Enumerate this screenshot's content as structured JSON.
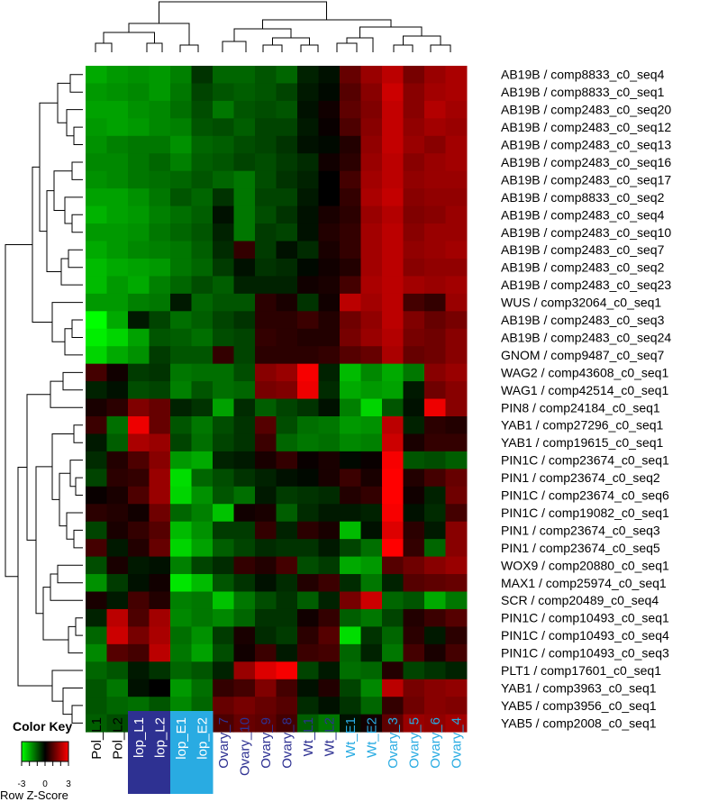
{
  "chart_data": {
    "type": "heatmap",
    "title": "",
    "xlabel": "",
    "ylabel": "",
    "value_range": [
      -3,
      3
    ],
    "colors": {
      "low": "#00ff00",
      "mid": "#000000",
      "high": "#ff0000"
    },
    "columns": [
      {
        "label": "Pol_L1",
        "color": "#000000",
        "box": ""
      },
      {
        "label": "Pol_L2",
        "color": "#000000",
        "box": ""
      },
      {
        "label": "lop_L1",
        "color": "#ffffff",
        "box": "#2e3192"
      },
      {
        "label": "lop_L2",
        "color": "#ffffff",
        "box": "#2e3192"
      },
      {
        "label": "lop_E1",
        "color": "#ffffff",
        "box": "#29abe2"
      },
      {
        "label": "lop_E2",
        "color": "#ffffff",
        "box": "#29abe2"
      },
      {
        "label": "Ovary_7",
        "color": "#2e3192",
        "box": ""
      },
      {
        "label": "Ovary_10",
        "color": "#2e3192",
        "box": ""
      },
      {
        "label": "Ovary_9",
        "color": "#2e3192",
        "box": ""
      },
      {
        "label": "Ovary_8",
        "color": "#2e3192",
        "box": ""
      },
      {
        "label": "Wt_L1",
        "color": "#2e3192",
        "box": ""
      },
      {
        "label": "Wt_L2",
        "color": "#2e3192",
        "box": ""
      },
      {
        "label": "Wt_E1",
        "color": "#29abe2",
        "box": ""
      },
      {
        "label": "Wt_E2",
        "color": "#29abe2",
        "box": ""
      },
      {
        "label": "Ovary_3",
        "color": "#29abe2",
        "box": ""
      },
      {
        "label": "Ovary_5",
        "color": "#29abe2",
        "box": ""
      },
      {
        "label": "Ovary_6",
        "color": "#29abe2",
        "box": ""
      },
      {
        "label": "Ovary_4",
        "color": "#29abe2",
        "box": ""
      }
    ],
    "rows": [
      "AB19B / comp8833_c0_seq4",
      "AB19B / comp8833_c0_seq1",
      "AB19B / comp2483_c0_seq20",
      "AB19B / comp2483_c0_seq12",
      "AB19B / comp2483_c0_seq13",
      "AB19B / comp2483_c0_seq16",
      "AB19B / comp2483_c0_seq17",
      "AB19B / comp8833_c0_seq2",
      "AB19B / comp2483_c0_seq4",
      "AB19B / comp2483_c0_seq10",
      "AB19B / comp2483_c0_seq7",
      "AB19B / comp2483_c0_seq2",
      "AB19B / comp2483_c0_seq23",
      "WUS / comp32064_c0_seq1",
      "AB19B / comp2483_c0_seq3",
      "AB19B / comp2483_c0_seq24",
      "GNOM / comp9487_c0_seq7",
      "WAG2 / comp43608_c0_seq1",
      "WAG1 / comp42514_c0_seq1",
      "PIN8 / comp24184_c0_seq1",
      "YAB1 / comp27296_c0_seq1",
      "YAB1 / comp19615_c0_seq1",
      "PIN1C / comp23674_c0_seq1",
      "PIN1 / comp23674_c0_seq2",
      "PIN1C / comp23674_c0_seq6",
      "PIN1C / comp19082_c0_seq1",
      "PIN1 / comp23674_c0_seq3",
      "PIN1 / comp23674_c0_seq5",
      "WOX9 / comp20880_c0_seq1",
      "MAX1 / comp25974_c0_seq1",
      "SCR / comp20489_c0_seq4",
      "PIN1C / comp10493_c0_seq1",
      "PIN1C / comp10493_c0_seq4",
      "PIN1C / comp10493_c0_seq3",
      "PLT1 / comp17601_c0_seq1",
      "YAB1 / comp3963_c0_seq1",
      "YAB5 / comp3956_c0_seq1",
      "YAB5 / comp2008_c0_seq1"
    ],
    "values": [
      [
        -2.0,
        -1.8,
        -1.7,
        -1.8,
        -1.5,
        -0.6,
        -1.2,
        -1.2,
        -1.0,
        -1.2,
        -0.4,
        -0.2,
        1.2,
        1.8,
        2.2,
        1.4,
        1.8,
        2.0
      ],
      [
        -1.8,
        -1.7,
        -1.6,
        -1.8,
        -1.4,
        -0.8,
        -1.0,
        -1.1,
        -1.0,
        -0.8,
        -0.3,
        -0.1,
        1.0,
        1.6,
        2.4,
        1.6,
        1.9,
        2.0
      ],
      [
        -1.9,
        -1.9,
        -1.7,
        -1.6,
        -1.3,
        -0.9,
        -1.4,
        -1.0,
        -0.9,
        -1.0,
        -0.2,
        0.2,
        1.1,
        1.5,
        2.3,
        1.6,
        2.1,
        1.9
      ],
      [
        -1.8,
        -1.9,
        -1.8,
        -1.6,
        -1.5,
        -1.0,
        -0.9,
        -1.1,
        -0.8,
        -0.8,
        -0.3,
        0.1,
        0.9,
        1.6,
        2.3,
        1.7,
        1.9,
        1.8
      ],
      [
        -1.7,
        -1.5,
        -1.4,
        -1.4,
        -1.7,
        -1.2,
        -1.1,
        -0.9,
        -0.8,
        -0.6,
        -0.2,
        -0.1,
        0.4,
        1.7,
        2.3,
        1.8,
        1.6,
        1.9
      ],
      [
        -1.6,
        -1.6,
        -1.4,
        -1.2,
        -1.5,
        -1.1,
        -1.0,
        -0.8,
        -0.9,
        -0.7,
        -0.5,
        0.2,
        0.5,
        1.8,
        2.2,
        1.6,
        1.8,
        1.9
      ],
      [
        -1.7,
        -1.6,
        -1.4,
        -1.3,
        -1.2,
        -1.0,
        -1.2,
        -1.4,
        -0.9,
        -0.6,
        -0.4,
        0.0,
        0.8,
        1.9,
        2.2,
        1.7,
        1.8,
        1.8
      ],
      [
        -1.9,
        -1.9,
        -1.7,
        -1.4,
        -1.0,
        -1.2,
        -0.6,
        -1.4,
        -0.8,
        -0.8,
        -0.3,
        0.0,
        0.6,
        2.0,
        2.3,
        1.6,
        1.7,
        1.7
      ],
      [
        -2.1,
        -1.9,
        -1.8,
        -1.5,
        -1.3,
        -1.1,
        -0.2,
        -1.4,
        -0.9,
        -0.6,
        -0.2,
        0.3,
        0.5,
        1.8,
        2.1,
        1.5,
        1.6,
        1.8
      ],
      [
        -1.8,
        -1.8,
        -1.7,
        -1.4,
        -1.2,
        -1.0,
        -0.4,
        -1.4,
        -0.7,
        -0.8,
        -0.2,
        0.4,
        0.6,
        1.9,
        2.2,
        1.6,
        1.8,
        1.8
      ],
      [
        -2.0,
        -1.8,
        -1.6,
        -1.5,
        -1.4,
        -1.1,
        -0.5,
        0.6,
        -0.7,
        -0.2,
        -0.5,
        0.3,
        0.6,
        1.9,
        2.2,
        1.7,
        1.8,
        1.9
      ],
      [
        -2.2,
        -2.0,
        -1.9,
        -1.8,
        -1.4,
        -1.2,
        -0.7,
        -0.2,
        -0.6,
        -0.5,
        -0.1,
        0.2,
        0.4,
        1.9,
        2.2,
        1.6,
        1.7,
        1.7
      ],
      [
        -2.2,
        -1.8,
        -2.0,
        -1.5,
        -1.2,
        -0.9,
        -1.1,
        -0.4,
        -0.4,
        -0.4,
        0.2,
        0.3,
        0.8,
        2.0,
        2.2,
        1.9,
        1.8,
        1.9
      ],
      [
        -1.8,
        -1.8,
        -1.5,
        -1.4,
        -0.3,
        -1.2,
        -1.0,
        -1.0,
        0.5,
        0.3,
        -0.6,
        0.2,
        2.2,
        1.9,
        2.2,
        0.8,
        0.6,
        1.8
      ],
      [
        -3.0,
        -2.0,
        -0.3,
        -0.8,
        -1.3,
        -1.1,
        -0.8,
        -0.6,
        0.5,
        0.5,
        0.7,
        0.4,
        1.3,
        1.7,
        2.2,
        1.5,
        1.2,
        1.4
      ],
      [
        -2.8,
        -2.5,
        -1.9,
        -1.0,
        -1.1,
        -1.3,
        -0.9,
        -0.8,
        0.6,
        0.5,
        0.4,
        0.4,
        1.4,
        1.8,
        2.1,
        1.4,
        1.3,
        1.6
      ],
      [
        -2.5,
        -2.0,
        -1.7,
        -0.7,
        -1.0,
        -1.0,
        0.6,
        -0.8,
        0.5,
        0.5,
        0.5,
        0.6,
        1.0,
        1.2,
        2.0,
        1.2,
        1.3,
        1.6
      ],
      [
        0.8,
        0.2,
        -0.7,
        -0.6,
        -1.4,
        -1.3,
        -1.3,
        -0.9,
        1.6,
        1.8,
        2.9,
        -0.4,
        -2.2,
        -1.6,
        -2.0,
        -1.4,
        1.6,
        1.8
      ],
      [
        -0.4,
        -0.2,
        -0.9,
        -0.8,
        -1.5,
        -1.0,
        -1.3,
        -1.2,
        1.4,
        1.5,
        2.8,
        -0.5,
        -2.0,
        -1.8,
        -1.9,
        -0.3,
        1.3,
        1.6
      ],
      [
        0.3,
        0.5,
        1.5,
        1.2,
        -0.4,
        -0.6,
        -1.9,
        -0.5,
        -1.1,
        -0.8,
        -0.6,
        -0.2,
        -1.5,
        -2.5,
        -1.0,
        -0.2,
        2.8,
        1.6
      ],
      [
        0.7,
        -1.3,
        2.8,
        1.2,
        -1.0,
        -1.4,
        -0.9,
        -0.6,
        1.0,
        -0.9,
        -1.3,
        -1.4,
        -1.8,
        -1.7,
        2.2,
        -0.4,
        0.5,
        0.4
      ],
      [
        -0.3,
        -1.1,
        2.0,
        1.8,
        -0.8,
        -1.3,
        -0.8,
        -0.6,
        0.7,
        -1.2,
        -1.4,
        -1.3,
        -1.6,
        -1.5,
        2.4,
        0.3,
        0.6,
        0.6
      ],
      [
        -0.5,
        0.4,
        0.9,
        1.6,
        -1.8,
        -2.0,
        -0.4,
        -0.3,
        0.3,
        0.6,
        0.1,
        0.3,
        -0.1,
        0.1,
        2.9,
        -1.0,
        -0.9,
        -1.1
      ],
      [
        -0.8,
        0.5,
        0.6,
        1.8,
        -2.6,
        -1.2,
        -0.9,
        -0.6,
        -0.4,
        -0.2,
        -0.1,
        0.3,
        0.7,
        0.3,
        3.0,
        0.4,
        0.8,
        1.2
      ],
      [
        0.1,
        0.3,
        0.9,
        1.8,
        -2.5,
        -1.7,
        -1.0,
        -1.3,
        -0.3,
        -0.7,
        -0.6,
        -0.5,
        0.4,
        0.6,
        3.0,
        0.2,
        -0.4,
        1.3
      ],
      [
        0.5,
        0.4,
        0.2,
        1.3,
        -1.2,
        -1.5,
        -2.3,
        0.2,
        0.3,
        -1.1,
        -0.5,
        -0.3,
        -0.3,
        -0.4,
        2.9,
        -0.2,
        -0.5,
        0.8
      ],
      [
        -0.8,
        0.3,
        0.6,
        1.0,
        -2.2,
        -1.7,
        -0.7,
        -0.7,
        0.6,
        -0.4,
        0.5,
        0.3,
        -2.2,
        -0.2,
        2.6,
        0.5,
        -0.3,
        1.6
      ],
      [
        0.8,
        -0.3,
        0.4,
        1.2,
        -2.5,
        -1.9,
        -1.1,
        -0.8,
        -0.5,
        -0.6,
        -0.6,
        -0.3,
        -0.8,
        -1.3,
        3.0,
        0.6,
        -1.2,
        1.6
      ],
      [
        -0.9,
        0.3,
        -0.3,
        -0.2,
        -1.5,
        -0.8,
        -0.5,
        0.6,
        0.4,
        0.8,
        -0.9,
        -0.7,
        -2.0,
        -1.8,
        1.0,
        1.3,
        1.6,
        1.8
      ],
      [
        -1.7,
        -0.7,
        -0.2,
        0.2,
        -2.7,
        -2.2,
        -1.0,
        -0.6,
        -0.2,
        -0.5,
        0.4,
        0.7,
        -0.5,
        -1.4,
        -0.4,
        1.0,
        1.1,
        1.2
      ],
      [
        0.3,
        -0.3,
        0.8,
        0.4,
        -1.5,
        -1.4,
        -2.3,
        -1.4,
        -0.9,
        -0.6,
        -1.1,
        -0.4,
        1.4,
        2.4,
        -1.2,
        -1.0,
        -2.0,
        -1.4
      ],
      [
        -0.4,
        2.2,
        0.9,
        1.9,
        -1.6,
        -1.4,
        -1.6,
        -1.2,
        -0.6,
        -0.6,
        0.2,
        0.6,
        -1.1,
        -1.4,
        -0.8,
        0.4,
        0.7,
        1.0
      ],
      [
        -1.2,
        2.4,
        1.4,
        2.0,
        -1.3,
        -1.7,
        -0.7,
        0.3,
        -0.5,
        -0.7,
        0.5,
        1.0,
        -2.6,
        -0.6,
        -1.2,
        0.5,
        -0.3,
        0.5
      ],
      [
        -1.6,
        1.0,
        0.8,
        2.2,
        -1.4,
        -1.9,
        -0.9,
        0.2,
        0.7,
        -0.3,
        0.7,
        0.8,
        -1.2,
        -0.4,
        -1.4,
        0.8,
        0.3,
        0.8
      ],
      [
        -1.2,
        -1.0,
        -0.3,
        -0.6,
        -1.2,
        -1.0,
        -0.4,
        1.8,
        2.6,
        2.9,
        -0.8,
        -0.3,
        -1.3,
        -1.2,
        0.4,
        -0.8,
        -0.6,
        -0.4
      ],
      [
        -1.0,
        -1.4,
        -0.2,
        0.0,
        -1.8,
        -1.3,
        0.6,
        0.8,
        1.5,
        0.8,
        -0.2,
        0.4,
        -0.8,
        -1.6,
        2.2,
        1.4,
        1.6,
        1.7
      ],
      [
        -1.0,
        -1.2,
        -1.3,
        -1.0,
        -1.6,
        -1.2,
        1.2,
        1.4,
        1.2,
        1.0,
        -0.5,
        -0.2,
        -0.6,
        -1.2,
        0.6,
        1.3,
        1.6,
        1.5
      ],
      [
        -1.1,
        -0.9,
        -1.5,
        -1.2,
        -1.4,
        -0.9,
        0.9,
        1.2,
        1.1,
        0.8,
        -1.1,
        -1.4,
        -0.2,
        0.2,
        1.1,
        1.8,
        1.7,
        1.9
      ]
    ],
    "color_key": {
      "title": "Color Key",
      "ticks": [
        "-3",
        "0",
        "3"
      ],
      "label": "Row Z-Score"
    }
  }
}
